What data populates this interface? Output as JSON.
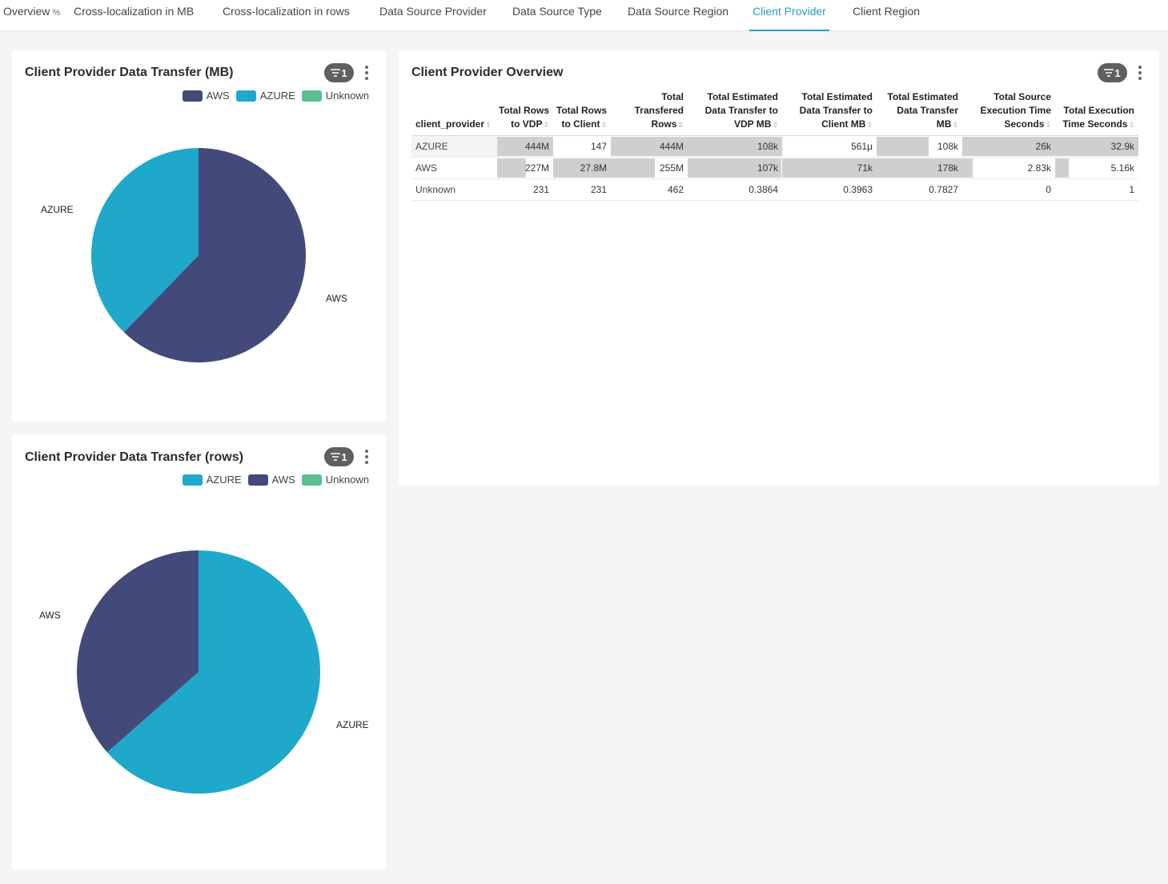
{
  "tabs": [
    {
      "label": "Overview",
      "active": false,
      "link_glyph": "%"
    },
    {
      "label": "Cross-localization in MB",
      "active": false
    },
    {
      "label": "Cross-localization in rows",
      "active": false
    },
    {
      "label": "Data Source Provider",
      "active": false
    },
    {
      "label": "Data Source Type",
      "active": false
    },
    {
      "label": "Data Source Region",
      "active": false
    },
    {
      "label": "Client Provider",
      "active": true
    },
    {
      "label": "Client Region",
      "active": false
    }
  ],
  "colors": {
    "aws": "#434a7a",
    "azure": "#20a8cb",
    "unknown": "#5ac18e",
    "accent": "#2d9ac2",
    "bar": "#cfcfcf"
  },
  "cards": {
    "mb_chart": {
      "title": "Client Provider Data Transfer (MB)",
      "filter_count": "1",
      "legend": [
        {
          "label": "AWS",
          "color": "#434a7a"
        },
        {
          "label": "AZURE",
          "color": "#20a8cb"
        },
        {
          "label": "Unknown",
          "color": "#5ac18e"
        }
      ],
      "slice_labels": {
        "aws": "AWS",
        "azure": "AZURE"
      }
    },
    "rows_chart": {
      "title": "Client Provider Data Transfer (rows)",
      "filter_count": "1",
      "legend": [
        {
          "label": "AZURE",
          "color": "#20a8cb"
        },
        {
          "label": "AWS",
          "color": "#434a7a"
        },
        {
          "label": "Unknown",
          "color": "#5ac18e"
        }
      ],
      "slice_labels": {
        "aws": "AWS",
        "azure": "AZURE"
      }
    },
    "overview": {
      "title": "Client Provider Overview",
      "filter_count": "1",
      "columns": [
        "client_provider",
        "Total Rows to VDP",
        "Total Rows to Client",
        "Total Transfered Rows",
        "Total Estimated Data Transfer to VDP MB",
        "Total Estimated Data Transfer to Client MB",
        "Total Estimated Data Transfer MB",
        "Total Source Execution Time Seconds",
        "Total Execution Time Seconds"
      ],
      "rows": [
        {
          "name": "AZURE",
          "cells": [
            "444M",
            "147",
            "444M",
            "108k",
            "561μ",
            "108k",
            "26k",
            "32.9k"
          ],
          "bars": [
            1.0,
            0.0,
            1.0,
            1.0,
            0.0,
            0.61,
            1.0,
            1.0
          ]
        },
        {
          "name": "AWS",
          "cells": [
            "227M",
            "27.8M",
            "255M",
            "107k",
            "71k",
            "178k",
            "2.83k",
            "5.16k"
          ],
          "bars": [
            0.51,
            1.0,
            0.57,
            0.99,
            1.0,
            1.0,
            0.11,
            0.16
          ]
        },
        {
          "name": "Unknown",
          "cells": [
            "231",
            "231",
            "462",
            "0.3864",
            "0.3963",
            "0.7827",
            "0",
            "1"
          ],
          "bars": [
            0,
            0,
            0,
            0,
            0,
            0,
            0,
            0
          ]
        }
      ]
    }
  },
  "chart_data": [
    {
      "type": "pie",
      "title": "Client Provider Data Transfer (MB)",
      "categories": [
        "AWS",
        "AZURE",
        "Unknown"
      ],
      "values": [
        178000,
        108000,
        0.7827
      ],
      "legend": "top-right"
    },
    {
      "type": "pie",
      "title": "Client Provider Data Transfer (rows)",
      "categories": [
        "AZURE",
        "AWS",
        "Unknown"
      ],
      "values": [
        444000000,
        255000000,
        462
      ],
      "legend": "top-right"
    }
  ]
}
